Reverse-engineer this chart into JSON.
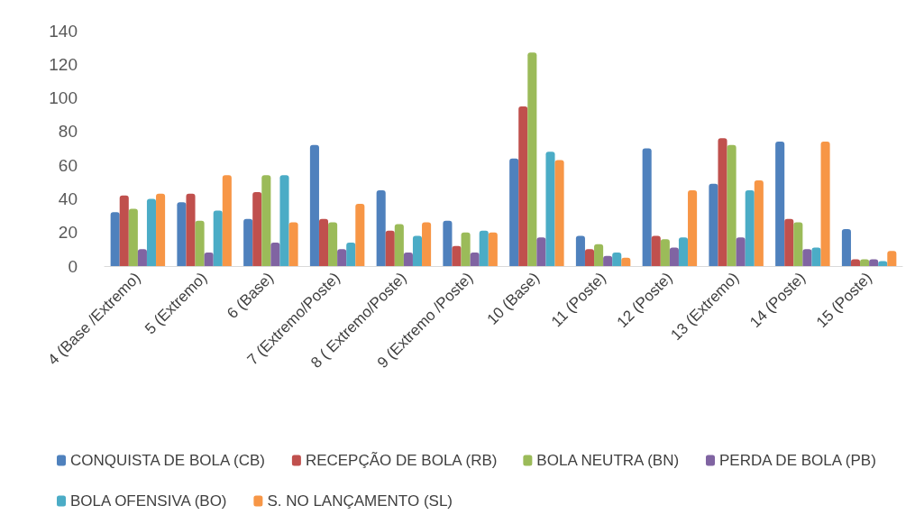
{
  "chart_data": {
    "type": "bar",
    "categories": [
      "4 (Base /Extremo)",
      "5 (Extremo)",
      "6 (Base)",
      "7 (Extremo/Poste)",
      "8 ( Extremo/Poste)",
      "9 (Extremo /Poste)",
      "10 (Base)",
      "11 (Poste)",
      "12 (Poste)",
      "13 (Extremo)",
      "14 (Poste)",
      "15 (Poste)"
    ],
    "series": [
      {
        "name": "CONQUISTA DE BOLA (CB)",
        "color": "#4f81bd",
        "values": [
          32,
          38,
          28,
          72,
          45,
          27,
          64,
          18,
          70,
          49,
          74,
          22
        ]
      },
      {
        "name": "RECEPÇÃO DE BOLA (RB)",
        "color": "#c0504d",
        "values": [
          42,
          43,
          44,
          28,
          21,
          12,
          95,
          10,
          18,
          76,
          28,
          4
        ]
      },
      {
        "name": "BOLA NEUTRA (BN)",
        "color": "#9bbb59",
        "values": [
          34,
          27,
          54,
          26,
          25,
          20,
          127,
          13,
          16,
          72,
          26,
          4
        ]
      },
      {
        "name": "PERDA DE BOLA (PB)",
        "color": "#8064a2",
        "values": [
          10,
          8,
          14,
          10,
          8,
          8,
          17,
          6,
          11,
          17,
          10,
          4
        ]
      },
      {
        "name": "BOLA OFENSIVA (BO)",
        "color": "#4bacc6",
        "values": [
          40,
          33,
          54,
          14,
          18,
          21,
          68,
          8,
          17,
          45,
          11,
          3
        ]
      },
      {
        "name": "S. NO LANÇAMENTO (SL)",
        "color": "#f79646",
        "values": [
          43,
          54,
          26,
          37,
          26,
          20,
          63,
          5,
          45,
          51,
          74,
          9
        ]
      }
    ],
    "ylim": [
      0,
      140
    ],
    "yticks": [
      0,
      20,
      40,
      60,
      80,
      100,
      120,
      140
    ],
    "grid": false,
    "legend": "bottom"
  }
}
